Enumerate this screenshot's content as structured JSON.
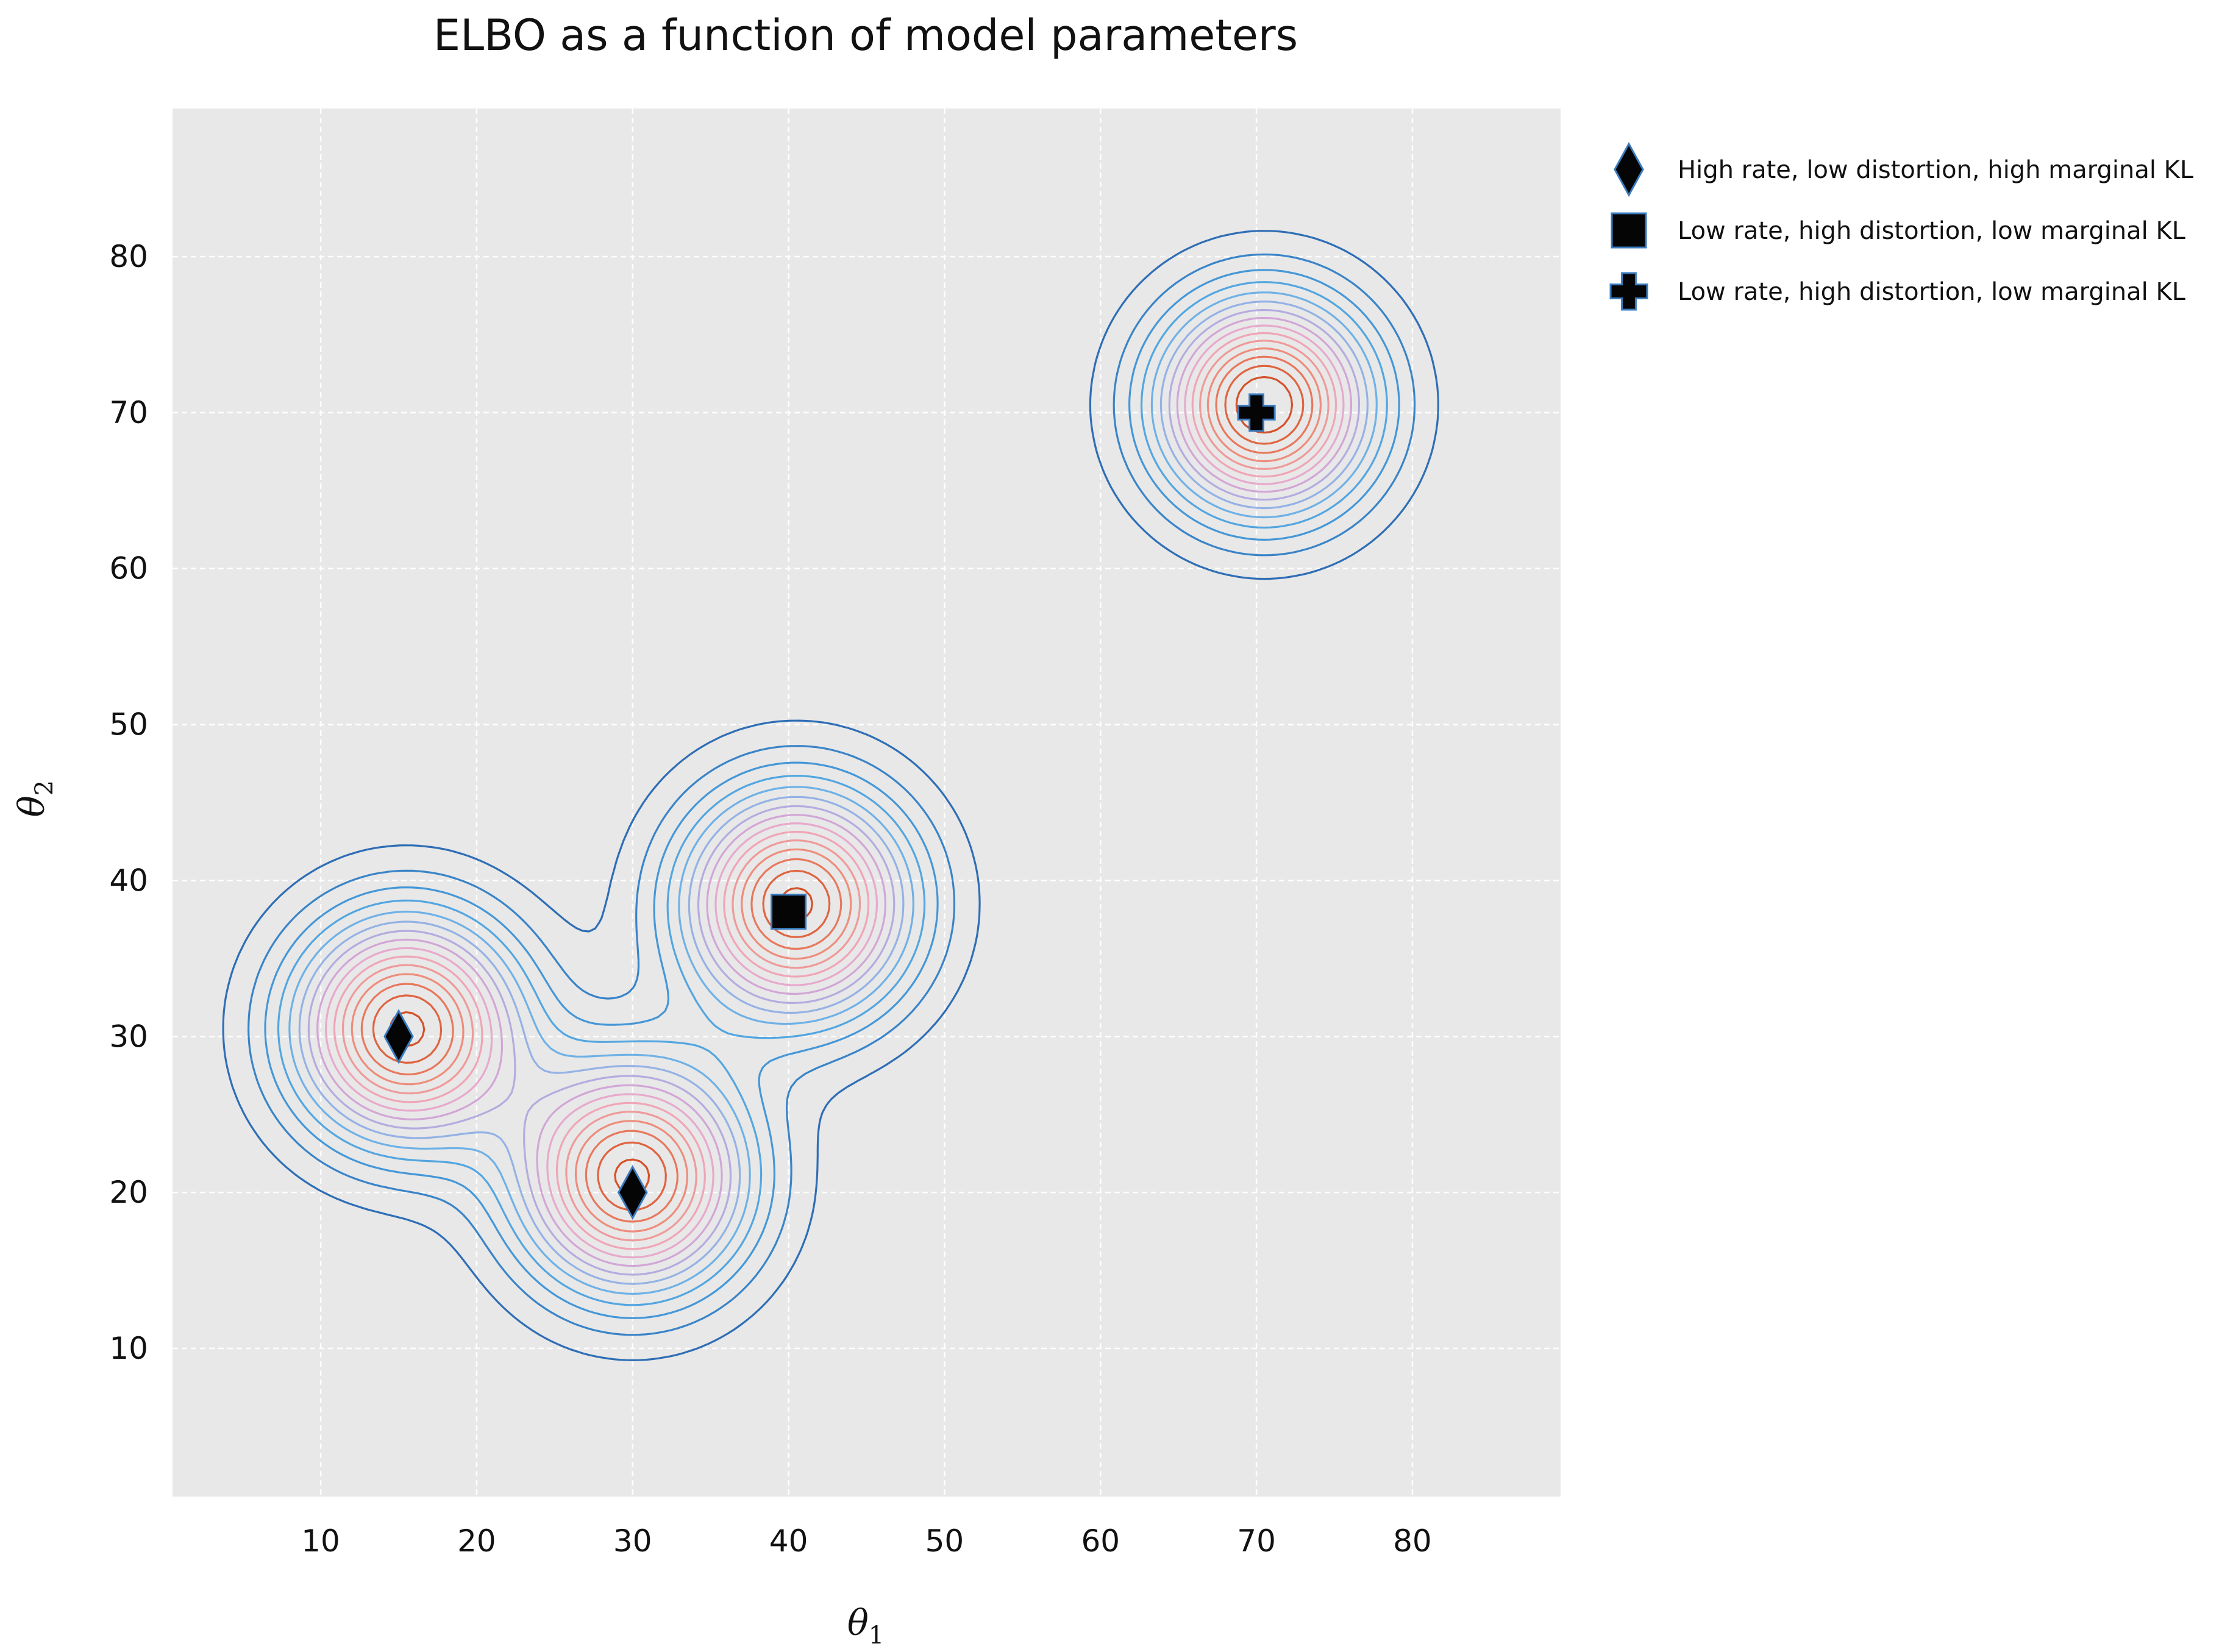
{
  "chart_data": {
    "type": "contour",
    "title": "ELBO as a function of model parameters",
    "xlabel": "θ1",
    "ylabel": "θ2",
    "xlabel_main": "θ",
    "xlabel_sub": "1",
    "ylabel_main": "θ",
    "ylabel_sub": "2",
    "xlim": [
      0.5,
      89.5
    ],
    "ylim": [
      0.5,
      89.5
    ],
    "xticks": [
      10,
      20,
      30,
      40,
      50,
      60,
      70,
      80
    ],
    "yticks": [
      10,
      20,
      30,
      40,
      50,
      60,
      70,
      80
    ],
    "grid": true,
    "legend_position": "outside-right-top",
    "background_color": "#e8e8e8",
    "contour_colors": [
      "#2f6eb5",
      "#3a84c8",
      "#4597d7",
      "#53a6e0",
      "#6fb1e6",
      "#94b2e5",
      "#b4acdf",
      "#d2a6d6",
      "#e7a9cc",
      "#f0a5b7",
      "#ef9a9a",
      "#ee8d7c",
      "#e8785d",
      "#df6440",
      "#d4522a"
    ],
    "components": [
      {
        "cx": 15.5,
        "cy": 30.5,
        "sigma": 5.0,
        "amp": 0.95
      },
      {
        "cx": 30.0,
        "cy": 21.0,
        "sigma": 5.0,
        "amp": 0.95
      },
      {
        "cx": 40.5,
        "cy": 38.5,
        "sigma": 5.0,
        "amp": 0.95
      },
      {
        "cx": 70.5,
        "cy": 70.5,
        "sigma": 4.7,
        "amp": 1.0
      }
    ],
    "series": [
      {
        "name": "High rate, low distortion, high marginal KL",
        "marker": "diamond",
        "points": [
          [
            15,
            30
          ],
          [
            30,
            20
          ]
        ]
      },
      {
        "name": "Low rate, high distortion, low marginal KL",
        "marker": "square",
        "points": [
          [
            40,
            38
          ]
        ]
      },
      {
        "name": "Low rate, high distortion, low marginal KL",
        "marker": "plus",
        "points": [
          [
            70,
            70
          ]
        ]
      }
    ]
  }
}
